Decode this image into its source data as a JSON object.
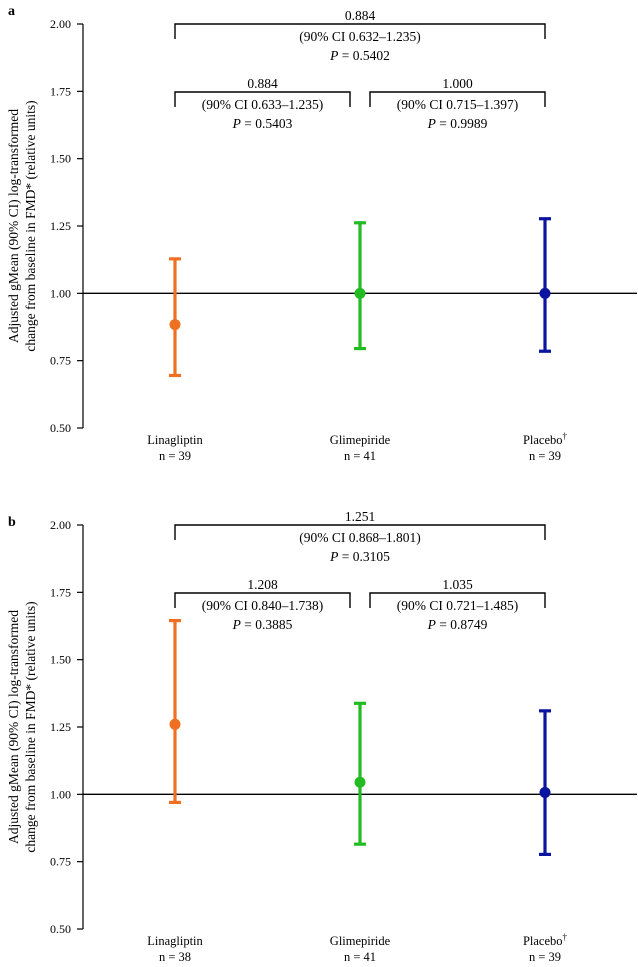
{
  "chart_data": [
    {
      "panel": "a",
      "type": "scatter",
      "ylabel_line1": "Adjusted gMean (90% CI) log-transformed",
      "ylabel_line2": "change from baseline in FMD* (relative units)",
      "ylim": [
        0.5,
        2.0
      ],
      "yticks": [
        "0.50",
        "0.75",
        "1.00",
        "1.25",
        "1.50",
        "1.75",
        "2.00"
      ],
      "reference_line": 1.0,
      "categories": [
        "Linagliptin",
        "Glimepiride",
        "Placebo"
      ],
      "category_marks": [
        "",
        "",
        "†"
      ],
      "n_labels": [
        "n = 39",
        "n = 41",
        "n = 39"
      ],
      "series": [
        {
          "category": "Linagliptin",
          "value": 0.884,
          "lower": 0.695,
          "upper": 1.128,
          "color": "#f07022"
        },
        {
          "category": "Glimepiride",
          "value": 1.0,
          "lower": 0.795,
          "upper": 1.262,
          "color": "#22bb22"
        },
        {
          "category": "Placebo",
          "value": 1.0,
          "lower": 0.785,
          "upper": 1.277,
          "color": "#0a14a0"
        }
      ],
      "comparisons": [
        {
          "from": 0,
          "to": 2,
          "level": "top",
          "ratio": "0.884",
          "ci": "(90% CI 0.632–1.235)",
          "p_label": "P",
          "p_value": " = 0.5402"
        },
        {
          "from": 0,
          "to": 1,
          "level": "low",
          "ratio": "0.884",
          "ci": "(90% CI 0.633–1.235)",
          "p_label": "P",
          "p_value": " = 0.5403"
        },
        {
          "from": 1,
          "to": 2,
          "level": "low",
          "ratio": "1.000",
          "ci": "(90% CI 0.715–1.397)",
          "p_label": "P",
          "p_value": " = 0.9989"
        }
      ]
    },
    {
      "panel": "b",
      "type": "scatter",
      "ylabel_line1": "Adjusted gMean (90% CI) log-transformed",
      "ylabel_line2": "change from baseline in FMD* (relative units)",
      "ylim": [
        0.5,
        2.0
      ],
      "yticks": [
        "0.50",
        "0.75",
        "1.00",
        "1.25",
        "1.50",
        "1.75",
        "2.00"
      ],
      "reference_line": 1.0,
      "categories": [
        "Linagliptin",
        "Glimepiride",
        "Placebo"
      ],
      "category_marks": [
        "",
        "",
        "†"
      ],
      "n_labels": [
        "n = 38",
        "n = 41",
        "n = 39"
      ],
      "series": [
        {
          "category": "Linagliptin",
          "value": 1.26,
          "lower": 0.97,
          "upper": 1.645,
          "color": "#f07022"
        },
        {
          "category": "Glimepiride",
          "value": 1.045,
          "lower": 0.815,
          "upper": 1.338,
          "color": "#22bb22"
        },
        {
          "category": "Placebo",
          "value": 1.007,
          "lower": 0.777,
          "upper": 1.31,
          "color": "#0a14a0"
        }
      ],
      "comparisons": [
        {
          "from": 0,
          "to": 2,
          "level": "top",
          "ratio": "1.251",
          "ci": "(90% CI 0.868–1.801)",
          "p_label": "P",
          "p_value": " = 0.3105"
        },
        {
          "from": 0,
          "to": 1,
          "level": "low",
          "ratio": "1.208",
          "ci": "(90% CI 0.840–1.738)",
          "p_label": "P",
          "p_value": " = 0.3885"
        },
        {
          "from": 1,
          "to": 2,
          "level": "low",
          "ratio": "1.035",
          "ci": "(90% CI 0.721–1.485)",
          "p_label": "P",
          "p_value": " = 0.8749"
        }
      ]
    }
  ]
}
